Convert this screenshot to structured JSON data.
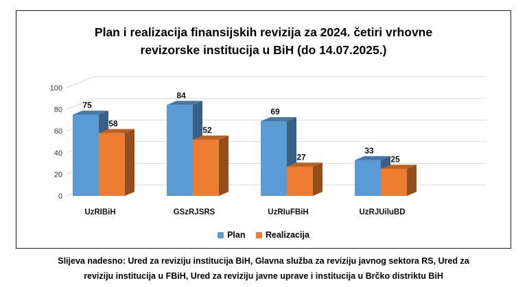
{
  "chart_data": {
    "type": "bar",
    "title_lines": [
      "Plan i realizacija finansijskih revizija za 2024. četiri vrhovne",
      "revizorske institucija u BiH (do 14.07.2025.)"
    ],
    "categories": [
      "UzRIBiH",
      "GSzRJSRS",
      "UzRIuFBiH",
      "UzRJUiluBD"
    ],
    "series": [
      {
        "name": "Plan",
        "values": [
          75,
          84,
          69,
          33
        ],
        "color": "#5B9BD5"
      },
      {
        "name": "Realizacija",
        "values": [
          58,
          52,
          27,
          25
        ],
        "color": "#ED7D31"
      }
    ],
    "ylim": [
      0,
      100
    ],
    "yticks": [
      0,
      20,
      40,
      60,
      80,
      100
    ],
    "grid": true,
    "legend_position": "bottom",
    "style": "3d-column"
  },
  "caption_lines": [
    "Slijeva nadesno: Ured za reviziju institucija BiH, Glavna služba za reviziju javnog sektora RS, Ured za",
    "reviziju institucija u FBiH, Ured za reviziju javne uprave i institucija u Brčko distriktu BiH"
  ]
}
